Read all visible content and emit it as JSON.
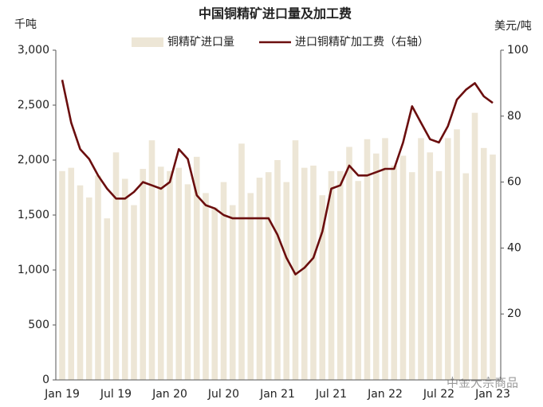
{
  "chart_data": {
    "type": "bar_line",
    "title": "中国铜精矿进口量及加工费",
    "y_label": "千吨",
    "y2_label": "美元/吨",
    "categories": [
      "Jan 19",
      null,
      null,
      null,
      null,
      null,
      "Jul 19",
      null,
      null,
      null,
      null,
      null,
      "Jan 20",
      null,
      null,
      null,
      null,
      null,
      "Jul 20",
      null,
      null,
      null,
      null,
      null,
      "Jan 21",
      null,
      null,
      null,
      null,
      null,
      "Jul 21",
      null,
      null,
      null,
      null,
      null,
      "Jan 22",
      null,
      null,
      null,
      null,
      null,
      "Jul 22",
      null,
      null,
      null,
      null,
      null,
      "Jan 23"
    ],
    "series": [
      {
        "name": "铜精矿进口量",
        "color": "#ede6d6",
        "kind": "bar",
        "values": [
          1900,
          1930,
          1770,
          1660,
          1860,
          1470,
          2070,
          1830,
          1590,
          1920,
          2180,
          1940,
          1900,
          1930,
          1780,
          2030,
          1700,
          1570,
          1800,
          1590,
          2150,
          1700,
          1840,
          1890,
          2000,
          1800,
          2180,
          1930,
          1950,
          1680,
          1900,
          1900,
          2120,
          1810,
          2190,
          2060,
          2200,
          1950,
          2040,
          1890,
          2200,
          2070,
          1900,
          2200,
          2280,
          1880,
          2430,
          2110,
          2050
        ]
      },
      {
        "name": "进口铜精矿加工费（右轴）",
        "color": "#6b0e0e",
        "kind": "line",
        "axis": "y2",
        "values": [
          91,
          78,
          70,
          67,
          62,
          58,
          55,
          55,
          57,
          60,
          59,
          58,
          60,
          70,
          67,
          56,
          53,
          52,
          50,
          49,
          49,
          49,
          49,
          49,
          44,
          37,
          32,
          34,
          37,
          45,
          58,
          59,
          65,
          62,
          62,
          63,
          64,
          64,
          72,
          83,
          78,
          73,
          72,
          77,
          85,
          88,
          90,
          86,
          84
        ]
      }
    ],
    "ylim": [
      0,
      3000
    ],
    "yticks": [
      0,
      {
        "value": 500,
        "label": "500"
      },
      {
        "value": 1000,
        "label": "1,000"
      },
      {
        "value": 1500,
        "label": "1,500"
      },
      {
        "value": 2000,
        "label": "2,000"
      },
      {
        "value": 2500,
        "label": "2,500"
      },
      {
        "value": 3000,
        "label": "3,000"
      }
    ],
    "y2lim": [
      0,
      100
    ],
    "y2ticks": [
      20,
      40,
      60,
      80,
      100
    ],
    "annotation": "中金大宗商品"
  }
}
